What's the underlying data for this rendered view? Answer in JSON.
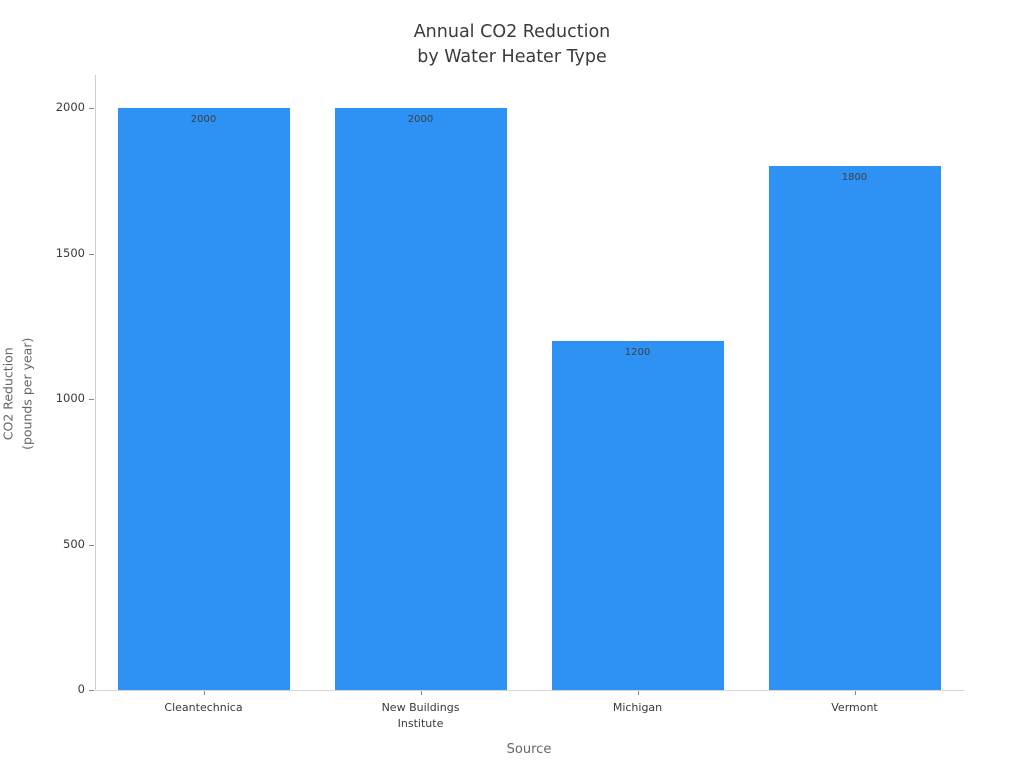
{
  "chart_data": {
    "type": "bar",
    "title": "Annual CO2 Reduction\nby Water Heater Type",
    "xlabel": "Source",
    "ylabel": "CO2 Reduction\n(pounds per year)",
    "categories": [
      "Cleantechnica",
      "New Buildings\nInstitute",
      "Michigan",
      "Vermont"
    ],
    "values": [
      2000,
      2000,
      1200,
      1800
    ],
    "bar_labels": [
      "2000",
      "2000",
      "1200",
      "1800"
    ],
    "yticks": [
      0,
      500,
      1000,
      1500,
      2000
    ],
    "ylim": [
      0,
      2000
    ],
    "grid": false,
    "legend": null,
    "bar_color": "#2e91f4",
    "label_color": "#3f3f3f",
    "tick_color": "#3a3a3a",
    "axis_title_color": "#666666"
  }
}
